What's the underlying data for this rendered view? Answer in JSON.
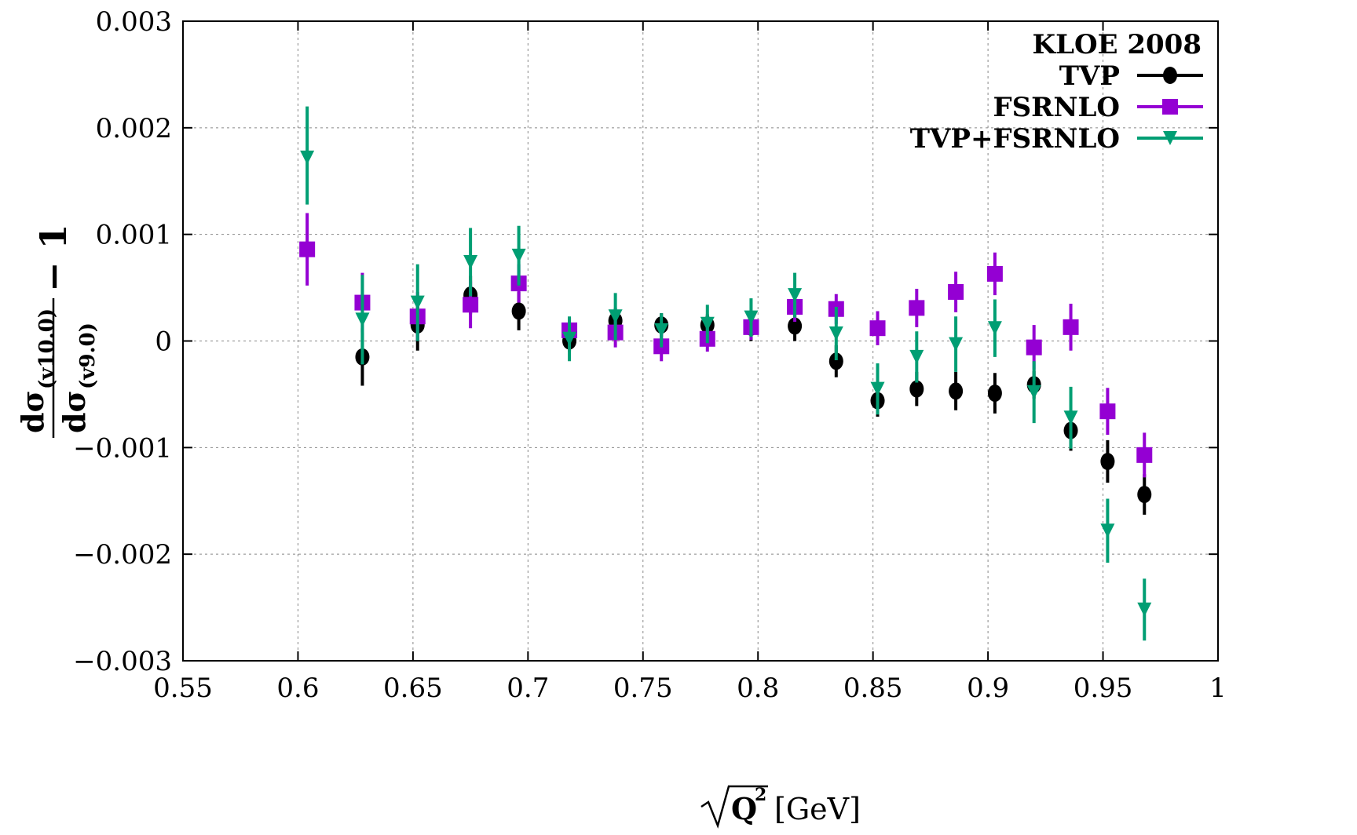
{
  "chart_data": {
    "type": "scatter",
    "xlabel": "[GeV]",
    "xlabel_var": "Q",
    "xlabel_exp": "2",
    "ylabel": {
      "numerator_main": "dσ",
      "numerator_sub": "(v10.0)",
      "denominator_main": "dσ",
      "denominator_sub": "(v9.0)",
      "suffix": "− 1"
    },
    "xlim": [
      0.55,
      1.0
    ],
    "ylim": [
      -0.003,
      0.003
    ],
    "x_ticks": [
      "0.55",
      "0.6",
      "0.65",
      "0.7",
      "0.75",
      "0.8",
      "0.85",
      "0.9",
      "0.95",
      "1"
    ],
    "y_ticks": [
      "−0.003",
      "−0.002",
      "−0.001",
      "0",
      "0.001",
      "0.002",
      "0.003"
    ],
    "x_tick_values": [
      0.55,
      0.6,
      0.65,
      0.7,
      0.75,
      0.8,
      0.85,
      0.9,
      0.95,
      1.0
    ],
    "y_tick_values": [
      -0.003,
      -0.002,
      -0.001,
      0,
      0.001,
      0.002,
      0.003
    ],
    "grid": true,
    "legend_title": "KLOE 2008",
    "legend_position": "top-right",
    "series": [
      {
        "name": "TVP",
        "color": "#000000",
        "marker": "circle",
        "points": [
          {
            "x": 0.628,
            "y": -0.00015,
            "lo": -0.00042,
            "hi": 0.00012
          },
          {
            "x": 0.652,
            "y": 0.00015,
            "lo": -9e-05,
            "hi": 0.00039
          },
          {
            "x": 0.675,
            "y": 0.00043,
            "lo": 0.00025,
            "hi": 0.00061
          },
          {
            "x": 0.696,
            "y": 0.00028,
            "lo": 0.0001,
            "hi": 0.00046
          },
          {
            "x": 0.718,
            "y": 0.0,
            "lo": -0.0001,
            "hi": 0.0001
          },
          {
            "x": 0.738,
            "y": 0.00019,
            "lo": 7e-05,
            "hi": 0.00031
          },
          {
            "x": 0.758,
            "y": 0.00015,
            "lo": 4e-05,
            "hi": 0.00026
          },
          {
            "x": 0.778,
            "y": 0.00015,
            "lo": 5e-05,
            "hi": 0.00025
          },
          {
            "x": 0.797,
            "y": 0.00013,
            "lo": 0.0,
            "hi": 0.00026
          },
          {
            "x": 0.816,
            "y": 0.00014,
            "lo": 0.0,
            "hi": 0.00028
          },
          {
            "x": 0.834,
            "y": -0.00019,
            "lo": -0.00034,
            "hi": -4e-05
          },
          {
            "x": 0.852,
            "y": -0.00056,
            "lo": -0.00071,
            "hi": -0.00041
          },
          {
            "x": 0.869,
            "y": -0.00045,
            "lo": -0.00061,
            "hi": -0.00029
          },
          {
            "x": 0.886,
            "y": -0.00047,
            "lo": -0.00065,
            "hi": -0.00029
          },
          {
            "x": 0.903,
            "y": -0.00049,
            "lo": -0.00068,
            "hi": -0.0003
          },
          {
            "x": 0.92,
            "y": -0.00041,
            "lo": -0.00054,
            "hi": -0.00028
          },
          {
            "x": 0.936,
            "y": -0.00084,
            "lo": -0.00103,
            "hi": -0.00065
          },
          {
            "x": 0.952,
            "y": -0.00113,
            "lo": -0.00133,
            "hi": -0.00093
          },
          {
            "x": 0.968,
            "y": -0.00144,
            "lo": -0.00163,
            "hi": -0.00125
          }
        ]
      },
      {
        "name": "FSRNLO",
        "color": "#9400d3",
        "marker": "square",
        "points": [
          {
            "x": 0.604,
            "y": 0.00086,
            "lo": 0.00052,
            "hi": 0.0012
          },
          {
            "x": 0.628,
            "y": 0.00036,
            "lo": 8e-05,
            "hi": 0.00064
          },
          {
            "x": 0.652,
            "y": 0.00023,
            "lo": 0.0,
            "hi": 0.00046
          },
          {
            "x": 0.675,
            "y": 0.00034,
            "lo": 0.00012,
            "hi": 0.00056
          },
          {
            "x": 0.696,
            "y": 0.00054,
            "lo": 0.00036,
            "hi": 0.00072
          },
          {
            "x": 0.718,
            "y": 0.0001,
            "lo": -2e-05,
            "hi": 0.00022
          },
          {
            "x": 0.738,
            "y": 8e-05,
            "lo": -6e-05,
            "hi": 0.00022
          },
          {
            "x": 0.758,
            "y": -5e-05,
            "lo": -0.00019,
            "hi": 9e-05
          },
          {
            "x": 0.778,
            "y": 2e-05,
            "lo": -0.0001,
            "hi": 0.00014
          },
          {
            "x": 0.797,
            "y": 0.00013,
            "lo": 1e-05,
            "hi": 0.00025
          },
          {
            "x": 0.816,
            "y": 0.00032,
            "lo": 0.00018,
            "hi": 0.00046
          },
          {
            "x": 0.834,
            "y": 0.0003,
            "lo": 0.00016,
            "hi": 0.00044
          },
          {
            "x": 0.852,
            "y": 0.00012,
            "lo": -4e-05,
            "hi": 0.00028
          },
          {
            "x": 0.869,
            "y": 0.00031,
            "lo": 0.00013,
            "hi": 0.00049
          },
          {
            "x": 0.886,
            "y": 0.00046,
            "lo": 0.00027,
            "hi": 0.00065
          },
          {
            "x": 0.903,
            "y": 0.00063,
            "lo": 0.00043,
            "hi": 0.00083
          },
          {
            "x": 0.92,
            "y": -6e-05,
            "lo": -0.00027,
            "hi": 0.00015
          },
          {
            "x": 0.936,
            "y": 0.00013,
            "lo": -9e-05,
            "hi": 0.00035
          },
          {
            "x": 0.952,
            "y": -0.00066,
            "lo": -0.00088,
            "hi": -0.00044
          },
          {
            "x": 0.968,
            "y": -0.00107,
            "lo": -0.00128,
            "hi": -0.00086
          }
        ]
      },
      {
        "name": "TVP+FSRNLO",
        "color": "#009e73",
        "marker": "triangle-down",
        "points": [
          {
            "x": 0.604,
            "y": 0.00172,
            "lo": 0.00128,
            "hi": 0.0022
          },
          {
            "x": 0.628,
            "y": 0.0002,
            "lo": -0.00022,
            "hi": 0.00062
          },
          {
            "x": 0.652,
            "y": 0.00036,
            "lo": 0.0,
            "hi": 0.00072
          },
          {
            "x": 0.675,
            "y": 0.00074,
            "lo": 0.00042,
            "hi": 0.00106
          },
          {
            "x": 0.696,
            "y": 0.0008,
            "lo": 0.00052,
            "hi": 0.00108
          },
          {
            "x": 0.718,
            "y": 2e-05,
            "lo": -0.00019,
            "hi": 0.00023
          },
          {
            "x": 0.738,
            "y": 0.00023,
            "lo": 1e-05,
            "hi": 0.00045
          },
          {
            "x": 0.758,
            "y": 0.0001,
            "lo": -6e-05,
            "hi": 0.00026
          },
          {
            "x": 0.778,
            "y": 0.00016,
            "lo": -2e-05,
            "hi": 0.00034
          },
          {
            "x": 0.797,
            "y": 0.00022,
            "lo": 4e-05,
            "hi": 0.0004
          },
          {
            "x": 0.816,
            "y": 0.00043,
            "lo": 0.00022,
            "hi": 0.00064
          },
          {
            "x": 0.834,
            "y": 7e-05,
            "lo": -0.00018,
            "hi": 0.00032
          },
          {
            "x": 0.852,
            "y": -0.00045,
            "lo": -0.00069,
            "hi": -0.00021
          },
          {
            "x": 0.869,
            "y": -0.00015,
            "lo": -0.00039,
            "hi": 9e-05
          },
          {
            "x": 0.886,
            "y": -3e-05,
            "lo": -0.00029,
            "hi": 0.00023
          },
          {
            "x": 0.903,
            "y": 0.00012,
            "lo": -0.00015,
            "hi": 0.00039
          },
          {
            "x": 0.92,
            "y": -0.00048,
            "lo": -0.00077,
            "hi": -0.00019
          },
          {
            "x": 0.936,
            "y": -0.00072,
            "lo": -0.00101,
            "hi": -0.00043
          },
          {
            "x": 0.952,
            "y": -0.00178,
            "lo": -0.00208,
            "hi": -0.00148
          },
          {
            "x": 0.968,
            "y": -0.00252,
            "lo": -0.00281,
            "hi": -0.00223
          }
        ]
      }
    ]
  }
}
